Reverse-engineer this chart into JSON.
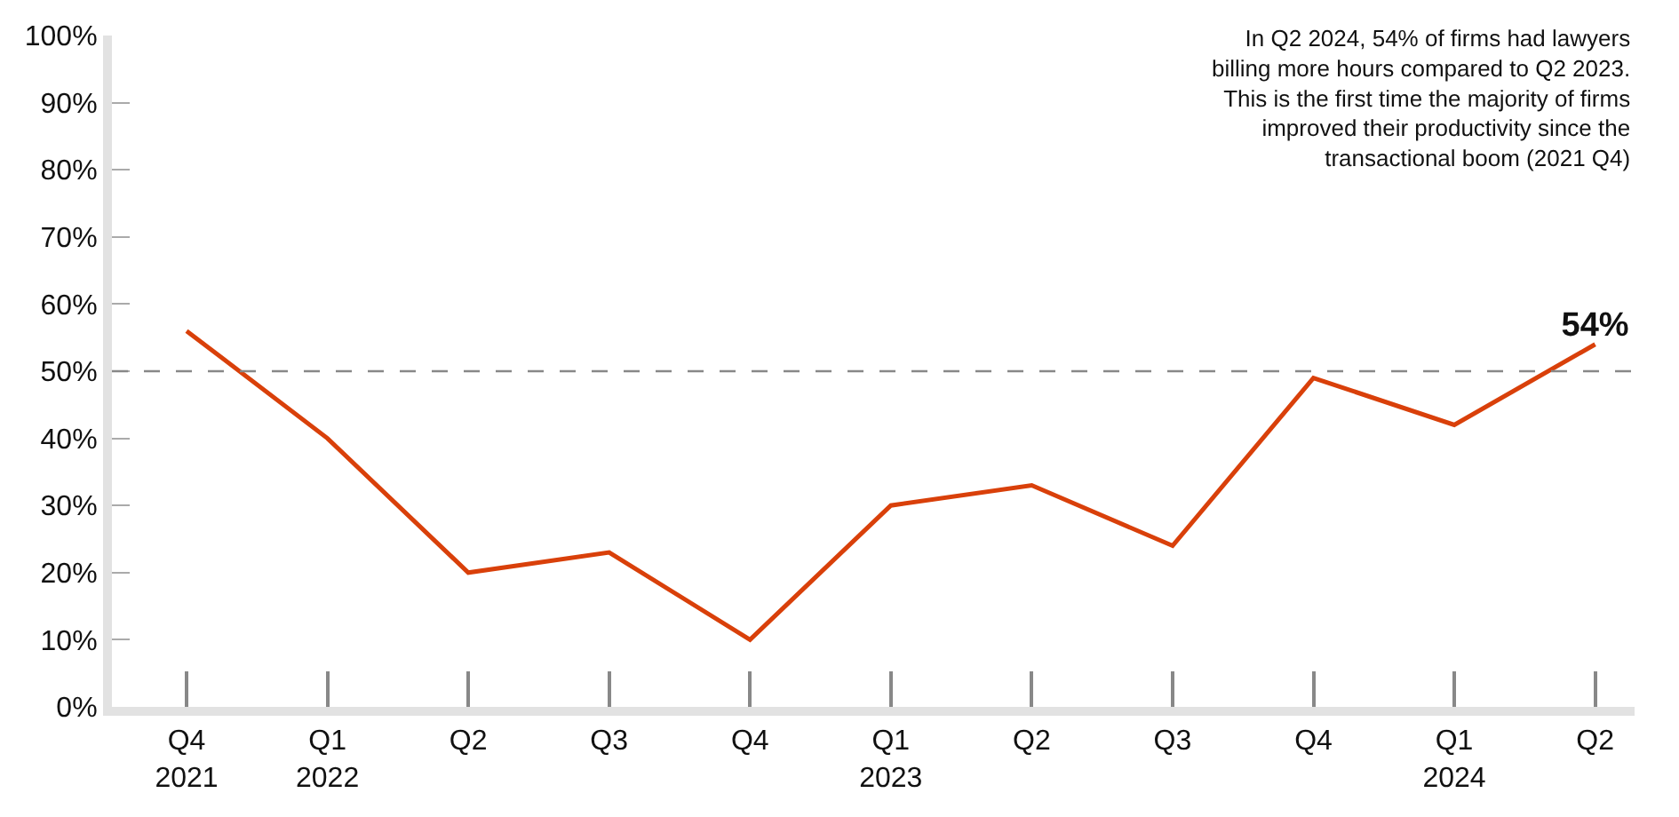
{
  "chart_data": {
    "type": "line",
    "categories": [
      "Q4\n2021",
      "Q1\n2022",
      "Q2",
      "Q3",
      "Q4",
      "Q1\n2023",
      "Q2",
      "Q3",
      "Q4",
      "Q1\n2024",
      "Q2"
    ],
    "series": [
      {
        "color": "#d9400a",
        "values": [
          56,
          40,
          20,
          23,
          10,
          30,
          33,
          24,
          49,
          42,
          54
        ],
        "value_labels": [
          null,
          null,
          null,
          null,
          null,
          null,
          null,
          null,
          null,
          null,
          "54%"
        ]
      }
    ],
    "ylim": [
      0,
      100
    ],
    "yticks": [
      {
        "value": 0,
        "label": "0%"
      },
      {
        "value": 10,
        "label": "10%"
      },
      {
        "value": 20,
        "label": "20%"
      },
      {
        "value": 30,
        "label": "30%"
      },
      {
        "value": 40,
        "label": "40%"
      },
      {
        "value": 50,
        "label": "50%"
      },
      {
        "value": 60,
        "label": "60%"
      },
      {
        "value": 70,
        "label": "70%"
      },
      {
        "value": 80,
        "label": "80%"
      },
      {
        "value": 90,
        "label": "90%"
      },
      {
        "value": 100,
        "label": "100%"
      }
    ],
    "ref_lines": [
      {
        "axis": "y",
        "value": 50,
        "color": "#888888",
        "line_style": "dashed"
      }
    ],
    "annotations": [
      "In Q2 2024, 54% of firms had lawyers\nbilling more hours compared to Q2 2023.\nThis is the first time the majority of firms\nimproved their productivity since the\ntransactional boom (2021 Q4)"
    ],
    "legend": false,
    "marker": "none",
    "line_style": "solid"
  }
}
